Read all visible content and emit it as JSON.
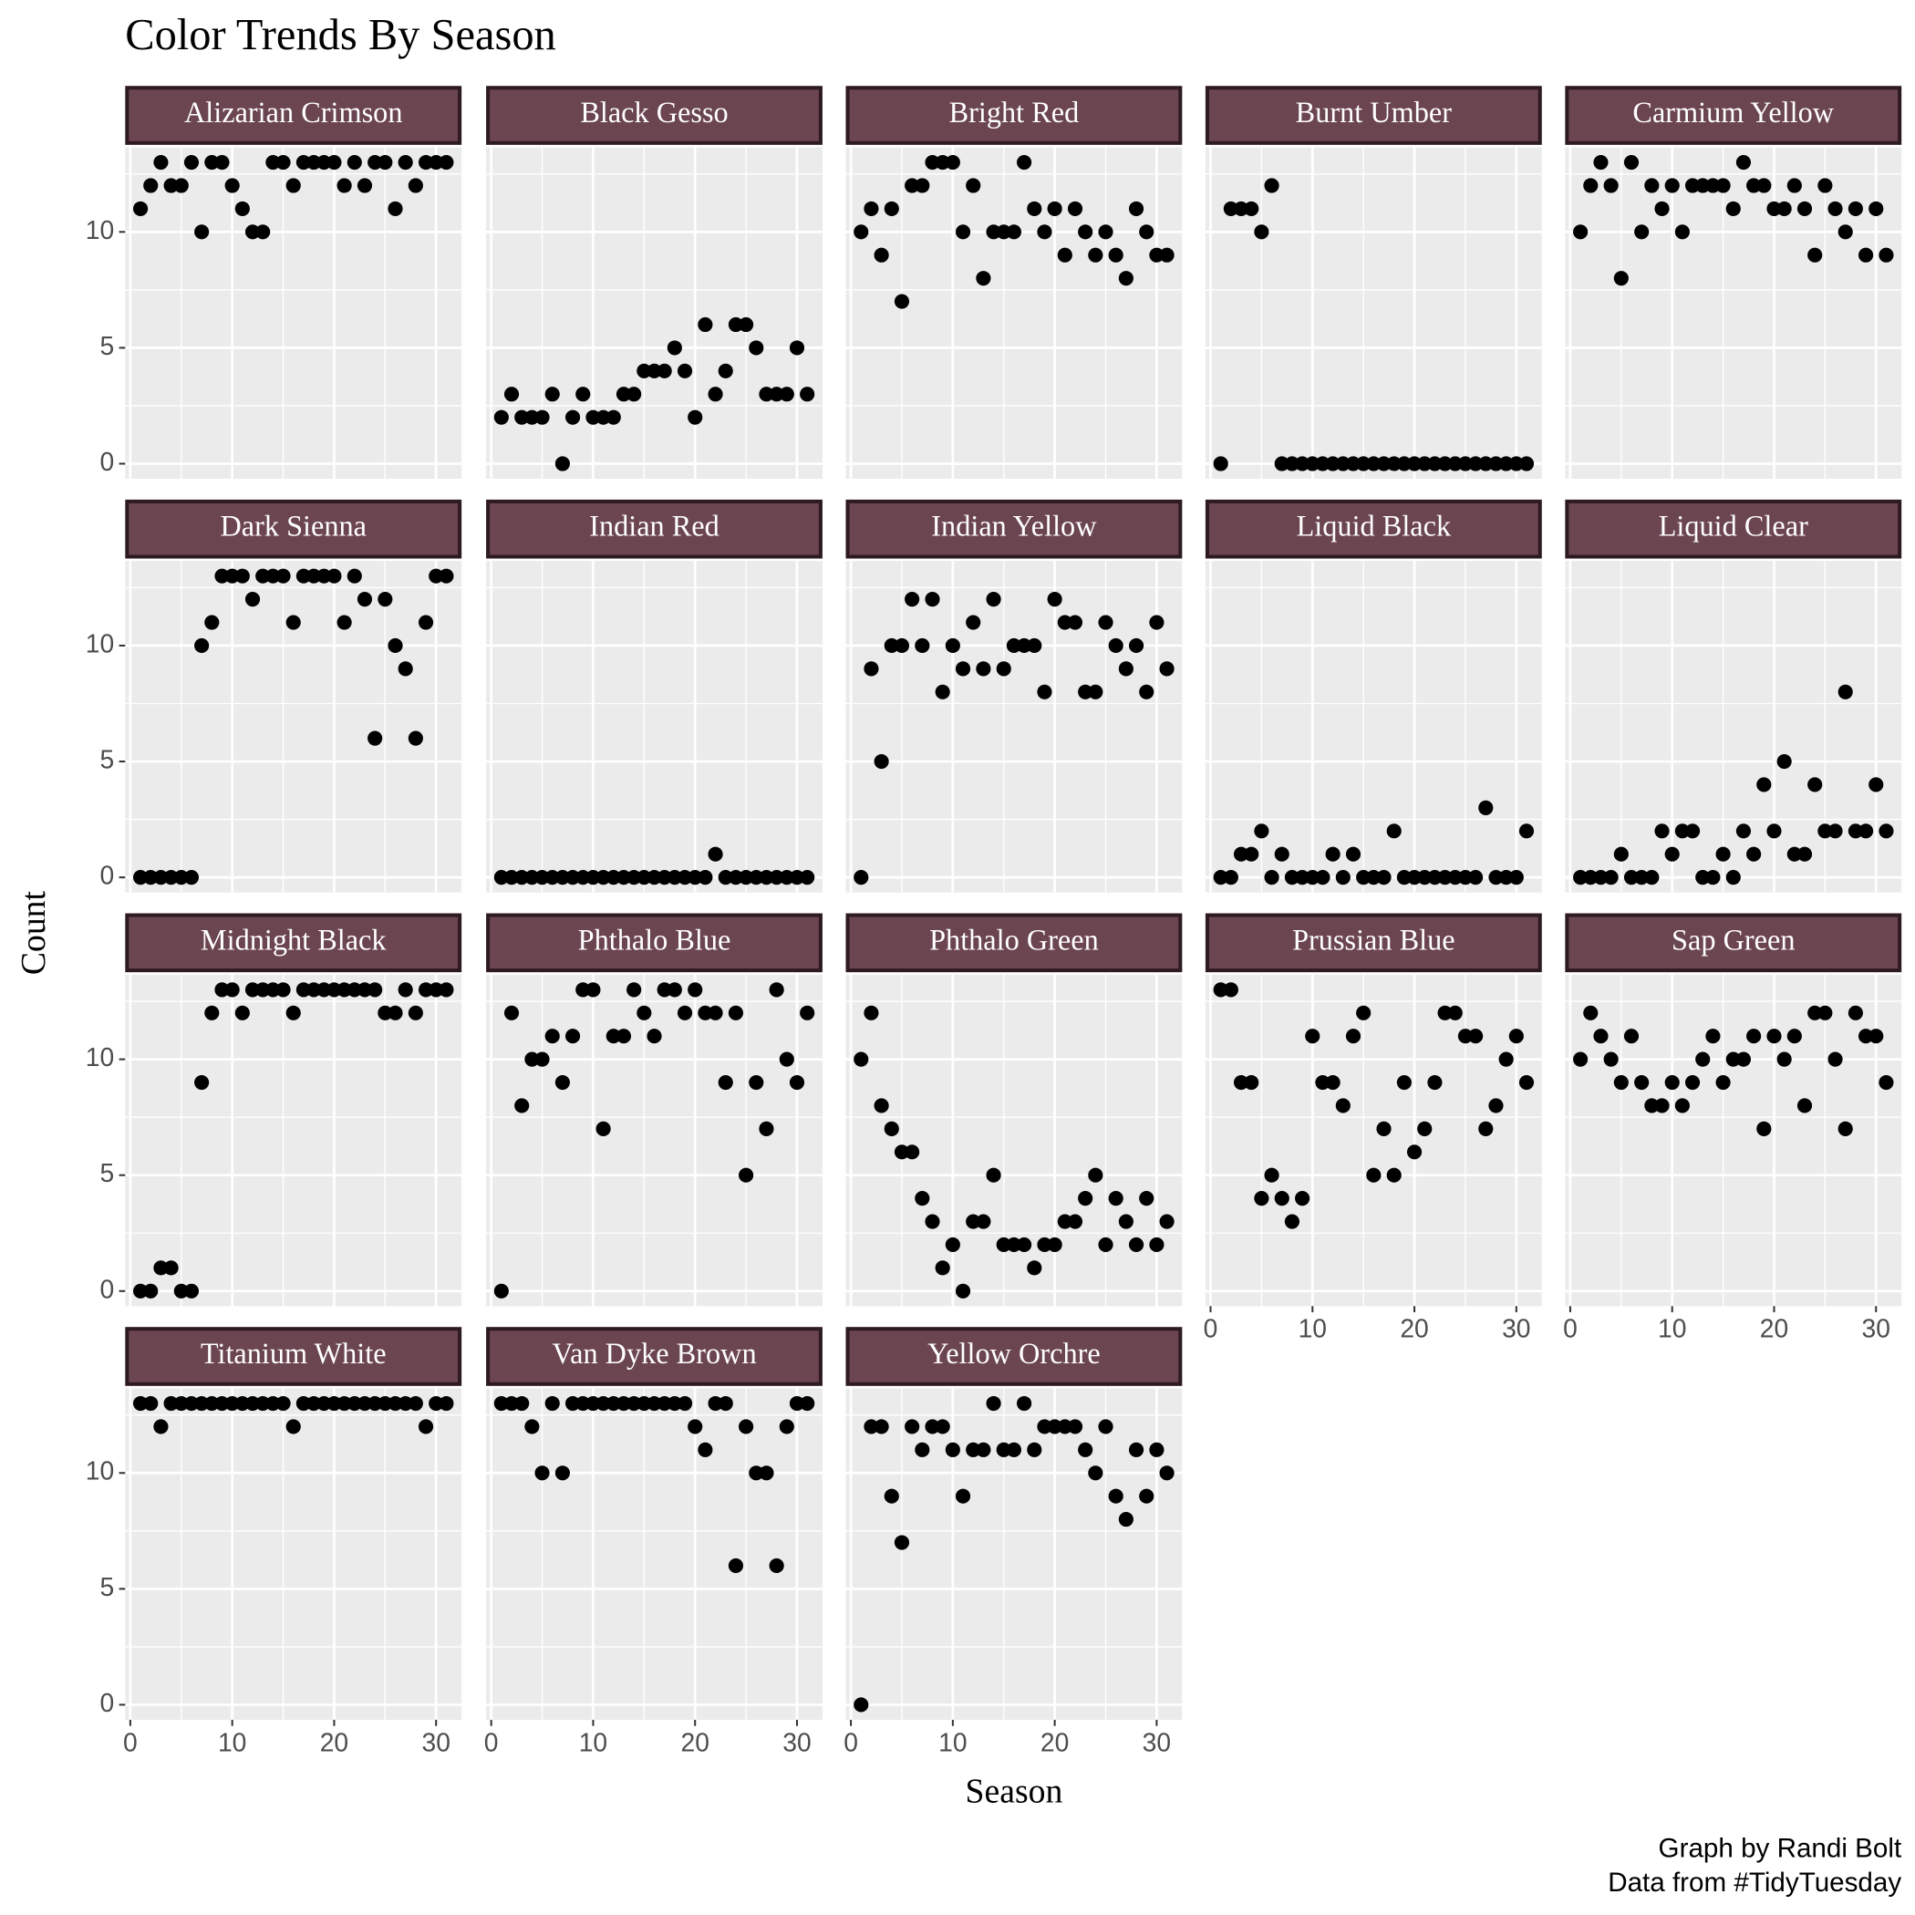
{
  "chart_data": {
    "type": "scatter",
    "title": "Color Trends By Season",
    "x_label": "Season",
    "y_label": "Count",
    "caption": [
      "Graph by Randi Bolt",
      "Data from #TidyTuesday"
    ],
    "color": "#000000",
    "grid": true,
    "xlim": [
      -0.5,
      32.5
    ],
    "ylim": [
      -0.65,
      13.65
    ],
    "xticks": [
      0,
      10,
      20,
      30
    ],
    "yticks": [
      0,
      5,
      10
    ],
    "x": [
      1,
      2,
      3,
      4,
      5,
      6,
      7,
      8,
      9,
      10,
      11,
      12,
      13,
      14,
      15,
      16,
      17,
      18,
      19,
      20,
      21,
      22,
      23,
      24,
      25,
      26,
      27,
      28,
      29,
      30,
      31
    ],
    "series": [
      {
        "name": "Alizarian Crimson",
        "values": [
          11,
          12,
          13,
          12,
          12,
          13,
          10,
          13,
          13,
          12,
          11,
          10,
          10,
          13,
          13,
          12,
          13,
          13,
          13,
          13,
          12,
          13,
          12,
          13,
          13,
          11,
          13,
          12,
          13,
          13,
          13
        ]
      },
      {
        "name": "Black Gesso",
        "values": [
          2,
          3,
          2,
          2,
          2,
          3,
          0,
          2,
          3,
          2,
          2,
          2,
          3,
          3,
          4,
          4,
          4,
          5,
          4,
          2,
          6,
          3,
          4,
          6,
          6,
          5,
          3,
          3,
          3,
          5,
          3
        ]
      },
      {
        "name": "Bright Red",
        "values": [
          10,
          11,
          9,
          11,
          7,
          12,
          12,
          13,
          13,
          13,
          10,
          12,
          8,
          10,
          10,
          10,
          13,
          11,
          10,
          11,
          9,
          11,
          10,
          9,
          10,
          9,
          8,
          11,
          10,
          9,
          9
        ]
      },
      {
        "name": "Burnt Umber",
        "values": [
          0,
          11,
          11,
          11,
          10,
          12,
          0,
          0,
          0,
          0,
          0,
          0,
          0,
          0,
          0,
          0,
          0,
          0,
          0,
          0,
          0,
          0,
          0,
          0,
          0,
          0,
          0,
          0,
          0,
          0,
          0
        ]
      },
      {
        "name": "Carmium Yellow",
        "values": [
          10,
          12,
          13,
          12,
          8,
          13,
          10,
          12,
          11,
          12,
          10,
          12,
          12,
          12,
          12,
          11,
          13,
          12,
          12,
          11,
          11,
          12,
          11,
          9,
          12,
          11,
          10,
          11,
          9,
          11,
          9
        ]
      },
      {
        "name": "Dark Sienna",
        "values": [
          0,
          0,
          0,
          0,
          0,
          0,
          10,
          11,
          13,
          13,
          13,
          12,
          13,
          13,
          13,
          11,
          13,
          13,
          13,
          13,
          11,
          13,
          12,
          6,
          12,
          10,
          9,
          6,
          11,
          13,
          13
        ]
      },
      {
        "name": "Indian Red",
        "values": [
          0,
          0,
          0,
          0,
          0,
          0,
          0,
          0,
          0,
          0,
          0,
          0,
          0,
          0,
          0,
          0,
          0,
          0,
          0,
          0,
          0,
          1,
          0,
          0,
          0,
          0,
          0,
          0,
          0,
          0,
          0
        ]
      },
      {
        "name": "Indian Yellow",
        "values": [
          0,
          9,
          5,
          10,
          10,
          12,
          10,
          12,
          8,
          10,
          9,
          11,
          9,
          12,
          9,
          10,
          10,
          10,
          8,
          12,
          11,
          11,
          8,
          8,
          11,
          10,
          9,
          10,
          8,
          11,
          9
        ]
      },
      {
        "name": "Liquid Black",
        "values": [
          0,
          0,
          1,
          1,
          2,
          0,
          1,
          0,
          0,
          0,
          0,
          1,
          0,
          1,
          0,
          0,
          0,
          2,
          0,
          0,
          0,
          0,
          0,
          0,
          0,
          0,
          3,
          0,
          0,
          0,
          2
        ]
      },
      {
        "name": "Liquid Clear",
        "values": [
          0,
          0,
          0,
          0,
          1,
          0,
          0,
          0,
          2,
          1,
          2,
          2,
          0,
          0,
          1,
          0,
          2,
          1,
          4,
          2,
          5,
          1,
          1,
          4,
          2,
          2,
          8,
          2,
          2,
          4,
          2
        ]
      },
      {
        "name": "Midnight Black",
        "values": [
          0,
          0,
          1,
          1,
          0,
          0,
          9,
          12,
          13,
          13,
          12,
          13,
          13,
          13,
          13,
          12,
          13,
          13,
          13,
          13,
          13,
          13,
          13,
          13,
          12,
          12,
          13,
          12,
          13,
          13,
          13
        ]
      },
      {
        "name": "Phthalo Blue",
        "values": [
          0,
          12,
          8,
          10,
          10,
          11,
          9,
          11,
          13,
          13,
          7,
          11,
          11,
          13,
          12,
          11,
          13,
          13,
          12,
          13,
          12,
          12,
          9,
          12,
          5,
          9,
          7,
          13,
          10,
          9,
          12
        ]
      },
      {
        "name": "Phthalo Green",
        "values": [
          10,
          12,
          8,
          7,
          6,
          6,
          4,
          3,
          1,
          2,
          0,
          3,
          3,
          5,
          2,
          2,
          2,
          1,
          2,
          2,
          3,
          3,
          4,
          5,
          2,
          4,
          3,
          2,
          4,
          2,
          3
        ]
      },
      {
        "name": "Prussian Blue",
        "values": [
          13,
          13,
          9,
          9,
          4,
          5,
          4,
          3,
          4,
          11,
          9,
          9,
          8,
          11,
          12,
          5,
          7,
          5,
          9,
          6,
          7,
          9,
          12,
          12,
          11,
          11,
          7,
          8,
          10,
          11,
          9
        ]
      },
      {
        "name": "Sap Green",
        "values": [
          10,
          12,
          11,
          10,
          9,
          11,
          9,
          8,
          8,
          9,
          8,
          9,
          10,
          11,
          9,
          10,
          10,
          11,
          7,
          11,
          10,
          11,
          8,
          12,
          12,
          10,
          7,
          12,
          11,
          11,
          9
        ]
      },
      {
        "name": "Titanium White",
        "values": [
          13,
          13,
          12,
          13,
          13,
          13,
          13,
          13,
          13,
          13,
          13,
          13,
          13,
          13,
          13,
          12,
          13,
          13,
          13,
          13,
          13,
          13,
          13,
          13,
          13,
          13,
          13,
          13,
          12,
          13,
          13
        ]
      },
      {
        "name": "Van Dyke Brown",
        "values": [
          13,
          13,
          13,
          12,
          10,
          13,
          10,
          13,
          13,
          13,
          13,
          13,
          13,
          13,
          13,
          13,
          13,
          13,
          13,
          12,
          11,
          13,
          13,
          6,
          12,
          10,
          10,
          6,
          12,
          13,
          13
        ]
      },
      {
        "name": "Yellow Orchre",
        "values": [
          0,
          12,
          12,
          9,
          7,
          12,
          11,
          12,
          12,
          11,
          9,
          11,
          11,
          13,
          11,
          11,
          13,
          11,
          12,
          12,
          12,
          12,
          11,
          10,
          12,
          9,
          8,
          11,
          9,
          11,
          10
        ]
      }
    ]
  }
}
